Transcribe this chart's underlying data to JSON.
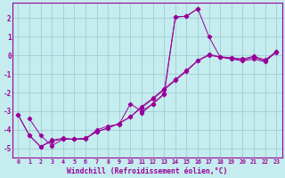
{
  "xlabel": "Windchill (Refroidissement éolien,°C)",
  "background_color": "#c5ecee",
  "grid_color": "#9ecdd4",
  "line_color": "#990099",
  "xlim": [
    -0.5,
    23.5
  ],
  "ylim": [
    -5.5,
    2.8
  ],
  "yticks": [
    -5,
    -4,
    -3,
    -2,
    -1,
    0,
    1,
    2
  ],
  "xticks": [
    0,
    1,
    2,
    3,
    4,
    5,
    6,
    7,
    8,
    9,
    10,
    11,
    12,
    13,
    14,
    15,
    16,
    17,
    18,
    19,
    20,
    21,
    22,
    23
  ],
  "series": [
    [
      null,
      -3.4,
      -4.3,
      -4.85,
      -4.5,
      -4.5,
      -4.5,
      -4.0,
      -3.8,
      -3.7,
      -2.6,
      -3.0,
      -2.6,
      -2.1,
      2.05,
      2.1,
      2.5,
      1.0,
      -0.1,
      -0.2,
      -0.3,
      -0.2,
      -0.35,
      0.2
    ],
    [
      -3.2,
      -4.3,
      -4.9,
      -4.55,
      -4.45,
      -4.5,
      -4.45,
      -4.1,
      -3.9,
      -3.65,
      -3.3,
      -2.8,
      -2.35,
      -1.85,
      -1.35,
      -0.85,
      -0.3,
      0.0,
      -0.1,
      -0.15,
      -0.25,
      -0.1,
      -0.3,
      0.15
    ],
    [
      -3.2,
      -4.3,
      -4.9,
      -4.6,
      -4.5,
      -4.5,
      -4.45,
      -4.1,
      -3.9,
      -3.65,
      -3.3,
      -2.75,
      -2.3,
      -1.8,
      -1.3,
      -0.8,
      -0.28,
      0.05,
      -0.08,
      -0.13,
      -0.2,
      -0.05,
      -0.25,
      0.2
    ],
    [
      null,
      null,
      null,
      null,
      null,
      null,
      null,
      null,
      null,
      null,
      null,
      -3.1,
      -2.6,
      -2.05,
      2.05,
      2.1,
      2.5,
      null,
      null,
      null,
      null,
      null,
      null,
      null
    ]
  ]
}
